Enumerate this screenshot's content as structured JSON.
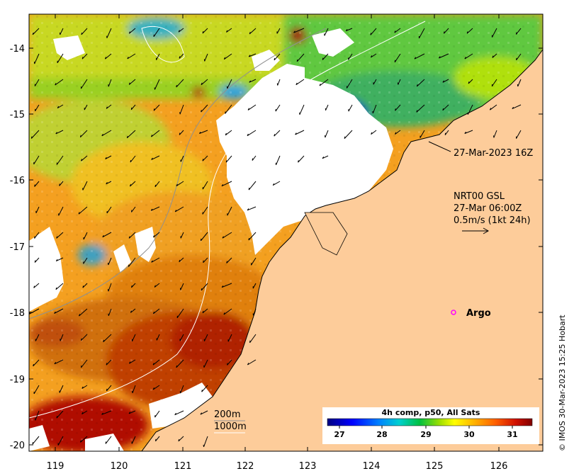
{
  "map": {
    "x_ticks": [
      "119",
      "120",
      "121",
      "122",
      "123",
      "124",
      "125",
      "126"
    ],
    "y_ticks": [
      "-14",
      "-15",
      "-16",
      "-17",
      "-18",
      "-19",
      "-20"
    ],
    "overlay_text": {
      "pass_time": "27-Mar-2023 16Z",
      "current_product": "NRT00 GSL",
      "current_time": "27-Mar 06:00Z",
      "arrow_scale": "0.5m/s (1kt 24h)",
      "argo": "Argo",
      "contour_200": "200m",
      "contour_1000": "1000m"
    },
    "colorbar": {
      "title": "4h comp, p50, All Sats",
      "ticks": [
        "27",
        "28",
        "29",
        "30",
        "31"
      ],
      "value_range": [
        26.5,
        31.5
      ]
    },
    "copyright": "© IMOS 30-Mar-2023 15:25 Hobart",
    "colors": {
      "land": "#fdcc9a",
      "cloud": "#ffffff",
      "sst_warm": "#a00000",
      "sst_cool": "#0000a0"
    },
    "argo_color": "#ff00ff"
  }
}
